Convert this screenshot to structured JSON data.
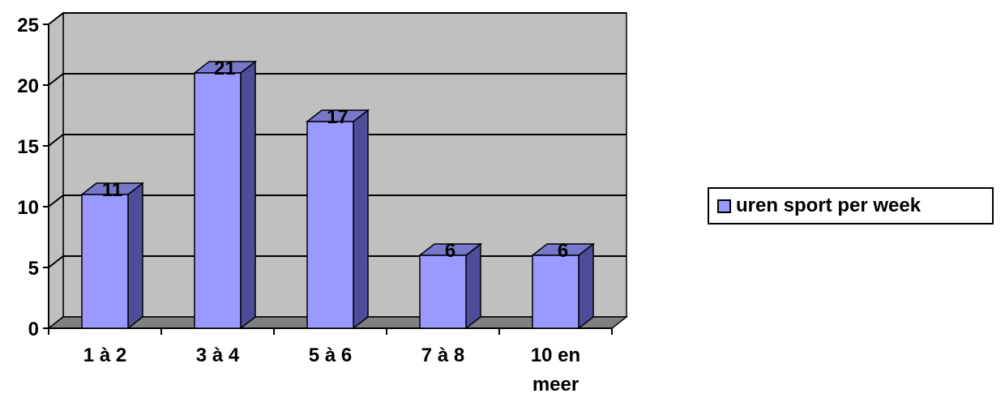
{
  "chart_data": {
    "type": "bar",
    "categories": [
      "1 à 2",
      "3 à 4",
      "5 à 6",
      "7 à 8",
      "10 en meer"
    ],
    "category_lines": [
      [
        "1 à 2"
      ],
      [
        "3 à 4"
      ],
      [
        "5 à 6"
      ],
      [
        "7 à 8"
      ],
      [
        "10 en",
        "meer"
      ]
    ],
    "series": [
      {
        "name": "uren sport per week",
        "values": [
          11,
          21,
          17,
          6,
          6
        ]
      }
    ],
    "data_labels": [
      "11",
      "21",
      "17",
      "6",
      "6"
    ],
    "yticks": [
      "0",
      "5",
      "10",
      "15",
      "20",
      "25"
    ],
    "ylim": [
      0,
      25
    ],
    "grid": true,
    "legend_position": "right",
    "colors": {
      "bar_front": "#9999ff",
      "bar_side": "#4d4d99",
      "bar_top": "#7777cc",
      "wall": "#c0c0c0",
      "floor": "#808080"
    }
  }
}
